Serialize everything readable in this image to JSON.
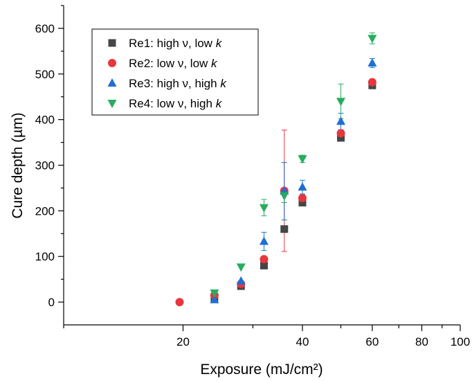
{
  "chart_data": {
    "type": "scatter",
    "xlabel": "Exposure (mJ/cm²)",
    "ylabel": "Cure depth (µm)",
    "x_scale": "log",
    "xlim": [
      10,
      100
    ],
    "ylim": [
      -50,
      650
    ],
    "x_ticks": [
      20,
      40,
      60,
      80,
      100
    ],
    "x_tick_labels": [
      "20",
      "40",
      "60",
      "80",
      "100"
    ],
    "y_ticks": [
      0,
      100,
      200,
      300,
      400,
      500,
      600
    ],
    "y_tick_labels": [
      "0",
      "100",
      "200",
      "300",
      "400",
      "500",
      "600"
    ],
    "grid": false,
    "legend_position": "top-left",
    "series": [
      {
        "name": "Re1: high ν, low k",
        "name_main": "Re1: high ν, low ",
        "name_italic": "k",
        "marker": "square",
        "color": "#464646",
        "points": [
          {
            "x": 24,
            "y": 10,
            "err": 0
          },
          {
            "x": 28,
            "y": 35,
            "err": 0
          },
          {
            "x": 32,
            "y": 80,
            "err": 0
          },
          {
            "x": 36,
            "y": 160,
            "err": 0
          },
          {
            "x": 40,
            "y": 218,
            "err": 0
          },
          {
            "x": 50,
            "y": 360,
            "err": 0
          },
          {
            "x": 60,
            "y": 475,
            "err": 0
          }
        ]
      },
      {
        "name": "Re2: low ν, low k",
        "name_main": "Re2: low ν, low ",
        "name_italic": "k",
        "marker": "circle",
        "color": "#e6373c",
        "points": [
          {
            "x": 19.6,
            "y": 0,
            "err": 0
          },
          {
            "x": 24,
            "y": 15,
            "err": 0
          },
          {
            "x": 28,
            "y": 40,
            "err": 0
          },
          {
            "x": 32,
            "y": 94,
            "err": 0
          },
          {
            "x": 36,
            "y": 244,
            "err": 133
          },
          {
            "x": 40,
            "y": 228,
            "err": 0
          },
          {
            "x": 50,
            "y": 370,
            "err": 0
          },
          {
            "x": 60,
            "y": 482,
            "err": 0
          }
        ]
      },
      {
        "name": "Re3: high ν, high k",
        "name_main": "Re3: high ν, high ",
        "name_italic": "k",
        "marker": "triangle-up",
        "color": "#1f6fd2",
        "points": [
          {
            "x": 24,
            "y": 5,
            "err": 0
          },
          {
            "x": 28,
            "y": 46,
            "err": 0
          },
          {
            "x": 32,
            "y": 133,
            "err": 20
          },
          {
            "x": 36,
            "y": 243,
            "err": 63
          },
          {
            "x": 40,
            "y": 252,
            "err": 15
          },
          {
            "x": 50,
            "y": 396,
            "err": 18
          },
          {
            "x": 60,
            "y": 524,
            "err": 10
          }
        ]
      },
      {
        "name": "Re4: low ν, high k",
        "name_main": "Re4: low ν, high ",
        "name_italic": "k",
        "marker": "triangle-down",
        "color": "#26ad5e",
        "points": [
          {
            "x": 24,
            "y": 20,
            "err": 0
          },
          {
            "x": 28,
            "y": 77,
            "err": 0
          },
          {
            "x": 32,
            "y": 207,
            "err": 18
          },
          {
            "x": 36,
            "y": 233,
            "err": 15
          },
          {
            "x": 40,
            "y": 314,
            "err": 8
          },
          {
            "x": 50,
            "y": 440,
            "err": 38
          },
          {
            "x": 60,
            "y": 578,
            "err": 12
          }
        ]
      }
    ]
  }
}
